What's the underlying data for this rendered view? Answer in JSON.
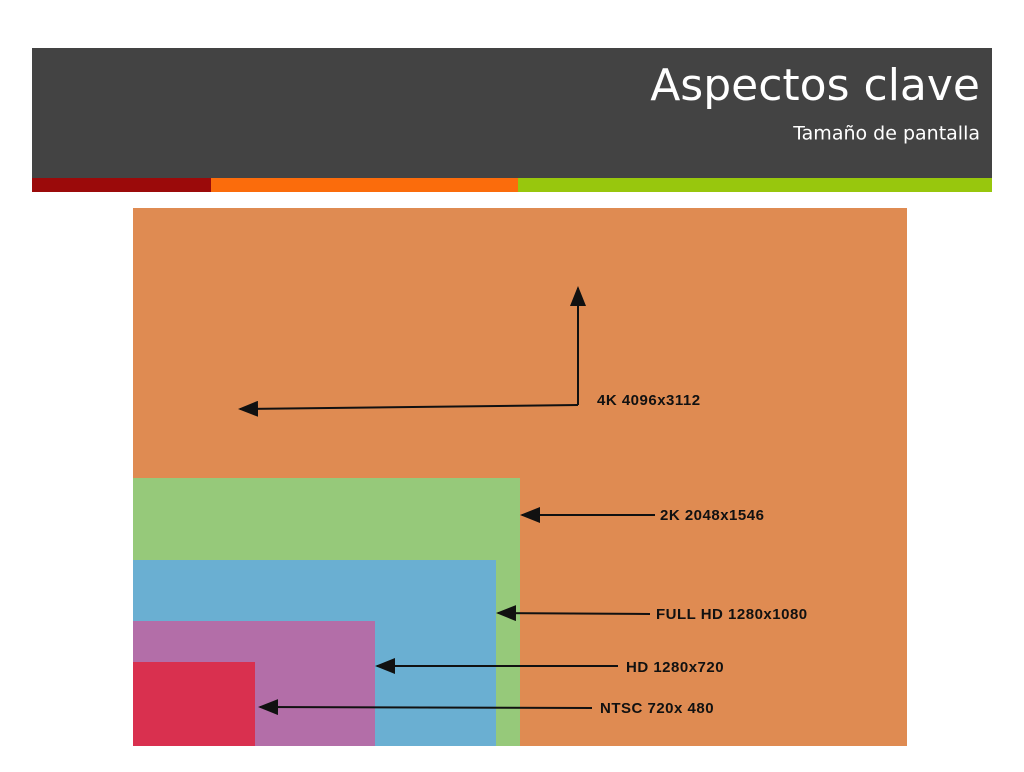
{
  "header": {
    "title": "Aspectos clave",
    "subtitle": "Tamaño de pantalla"
  },
  "labels": [
    "4K  4096x3112",
    "2K  2048x1546",
    "FULL HD 1280x1080",
    "HD 1280x720",
    "NTSC 720x 480"
  ]
}
